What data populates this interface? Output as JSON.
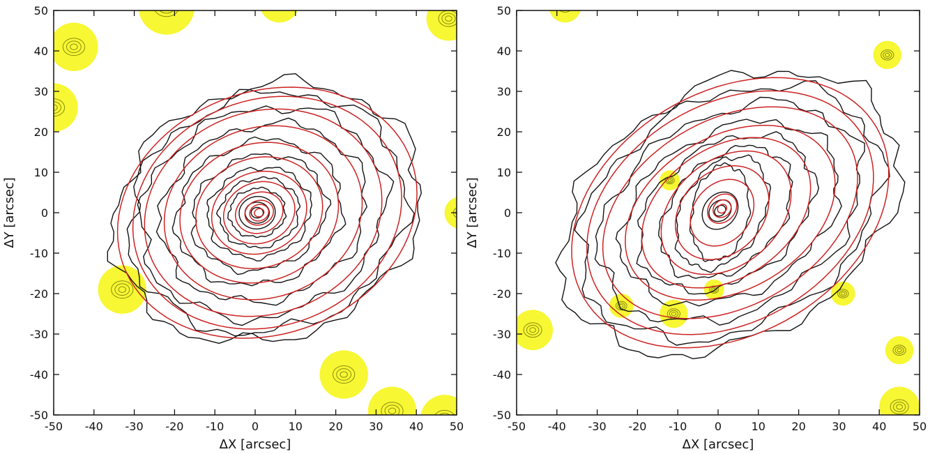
{
  "chart_data": [
    {
      "type": "contour",
      "xlabel": "ΔX [arcsec]",
      "ylabel": "ΔY [arcsec]",
      "xlim": [
        -50,
        50
      ],
      "ylim": [
        -50,
        50
      ],
      "xticks": [
        -50,
        -40,
        -30,
        -20,
        -10,
        0,
        10,
        20,
        30,
        40,
        50
      ],
      "yticks": [
        -50,
        -40,
        -30,
        -20,
        -10,
        0,
        10,
        20,
        30,
        40,
        50
      ],
      "grid": false,
      "isophote_color": "#cc2222",
      "contour_color": "#111111",
      "mask_color": "#f7f734",
      "ellipses": [
        {
          "cx": 1,
          "cy": 0,
          "a": 1.2,
          "b": 1.0,
          "pa": 20
        },
        {
          "cx": 1,
          "cy": 0,
          "a": 2.4,
          "b": 2.0,
          "pa": 20
        },
        {
          "cx": 1,
          "cy": 0,
          "a": 3.6,
          "b": 3.0,
          "pa": 20
        },
        {
          "cx": 1,
          "cy": 0,
          "a": 6,
          "b": 5,
          "pa": 20
        },
        {
          "cx": 1,
          "cy": 0,
          "a": 9,
          "b": 7.5,
          "pa": 20
        },
        {
          "cx": 1,
          "cy": 0,
          "a": 12,
          "b": 10,
          "pa": 20
        },
        {
          "cx": 1,
          "cy": 0,
          "a": 16,
          "b": 13.5,
          "pa": 20
        },
        {
          "cx": 1,
          "cy": 0,
          "a": 20,
          "b": 17,
          "pa": 20
        },
        {
          "cx": 2,
          "cy": 0,
          "a": 25,
          "b": 21,
          "pa": 20
        },
        {
          "cx": 2,
          "cy": 0,
          "a": 30,
          "b": 25,
          "pa": 20
        },
        {
          "cx": 3,
          "cy": 0,
          "a": 34,
          "b": 28,
          "pa": 20
        },
        {
          "cx": 3,
          "cy": 0,
          "a": 38,
          "b": 30,
          "pa": 20
        }
      ],
      "contours": [
        {
          "cx": 0.5,
          "cy": 0,
          "a": 1.5,
          "b": 1.3,
          "pa": 0
        },
        {
          "cx": 0.5,
          "cy": 0,
          "a": 3,
          "b": 2.6,
          "pa": 0
        },
        {
          "cx": 0.5,
          "cy": 0,
          "a": 4.5,
          "b": 4,
          "pa": 10
        },
        {
          "cx": 0.5,
          "cy": 0,
          "a": 7,
          "b": 6,
          "pa": 10
        },
        {
          "cx": 1,
          "cy": 0,
          "a": 10,
          "b": 8.5,
          "pa": 15
        },
        {
          "cx": 1,
          "cy": 0,
          "a": 13,
          "b": 11,
          "pa": 18
        },
        {
          "cx": 1,
          "cy": 0,
          "a": 17,
          "b": 14,
          "pa": 20
        },
        {
          "cx": 1,
          "cy": 0,
          "a": 21,
          "b": 17.5,
          "pa": 20
        },
        {
          "cx": 2,
          "cy": 0,
          "a": 26,
          "b": 21.5,
          "pa": 20
        },
        {
          "cx": 2,
          "cy": 0,
          "a": 31,
          "b": 25.5,
          "pa": 20
        },
        {
          "cx": 3,
          "cy": 0,
          "a": 35,
          "b": 29,
          "pa": 20
        },
        {
          "cx": 3,
          "cy": 0,
          "a": 39,
          "b": 31,
          "pa": 20
        }
      ],
      "masks": [
        {
          "x": -22,
          "y": 51,
          "r": 7
        },
        {
          "x": -45,
          "y": 41,
          "r": 6
        },
        {
          "x": 6,
          "y": 52,
          "r": 5
        },
        {
          "x": 48,
          "y": 48,
          "r": 5.5
        },
        {
          "x": -50,
          "y": 26,
          "r": 6
        },
        {
          "x": 51,
          "y": 0,
          "r": 4
        },
        {
          "x": -33,
          "y": -19,
          "r": 6
        },
        {
          "x": 22,
          "y": -40,
          "r": 6
        },
        {
          "x": 34,
          "y": -49,
          "r": 6
        },
        {
          "x": 47,
          "y": -51,
          "r": 6
        }
      ]
    },
    {
      "type": "contour",
      "xlabel": "ΔX [arcsec]",
      "ylabel": "ΔY [arcsec]",
      "xlim": [
        -50,
        50
      ],
      "ylim": [
        -50,
        50
      ],
      "xticks": [
        -50,
        -40,
        -30,
        -20,
        -10,
        0,
        10,
        20,
        30,
        40,
        50
      ],
      "yticks": [
        -50,
        -40,
        -30,
        -20,
        -10,
        0,
        10,
        20,
        30,
        40,
        50
      ],
      "grid": false,
      "isophote_color": "#cc2222",
      "contour_color": "#111111",
      "mask_color": "#f7f734",
      "ellipses": [
        {
          "cx": 1,
          "cy": 1,
          "a": 1.2,
          "b": 1.0,
          "pa": 40
        },
        {
          "cx": 1,
          "cy": 1,
          "a": 2.4,
          "b": 2.0,
          "pa": 40
        },
        {
          "cx": 1,
          "cy": 1,
          "a": 4,
          "b": 3.2,
          "pa": 45
        },
        {
          "cx": 1,
          "cy": 0,
          "a": 9,
          "b": 7,
          "pa": 50
        },
        {
          "cx": 1,
          "cy": 0,
          "a": 13,
          "b": 10,
          "pa": 45
        },
        {
          "cx": 2,
          "cy": 0,
          "a": 18,
          "b": 13,
          "pa": 40
        },
        {
          "cx": 2,
          "cy": 0,
          "a": 23,
          "b": 16,
          "pa": 35
        },
        {
          "cx": 3,
          "cy": 0,
          "a": 28,
          "b": 19,
          "pa": 30
        },
        {
          "cx": 3,
          "cy": 0,
          "a": 34,
          "b": 23,
          "pa": 30
        },
        {
          "cx": 3,
          "cy": 0,
          "a": 38,
          "b": 27,
          "pa": 30
        },
        {
          "cx": 3,
          "cy": 0,
          "a": 42,
          "b": 30,
          "pa": 30
        }
      ],
      "contours": [
        {
          "cx": 0.5,
          "cy": 0.5,
          "a": 1.5,
          "b": 1.2,
          "pa": 40
        },
        {
          "cx": 0.5,
          "cy": 0.5,
          "a": 3,
          "b": 2.4,
          "pa": 40
        },
        {
          "cx": 0.5,
          "cy": 0.5,
          "a": 5,
          "b": 4,
          "pa": 50
        },
        {
          "cx": 0.5,
          "cy": 0,
          "a": 12,
          "b": 7,
          "pa": 80
        },
        {
          "cx": 1,
          "cy": 0,
          "a": 15,
          "b": 10,
          "pa": 60
        },
        {
          "cx": 2,
          "cy": 0,
          "a": 19,
          "b": 13,
          "pa": 45
        },
        {
          "cx": 2,
          "cy": 0,
          "a": 24,
          "b": 16.5,
          "pa": 35
        },
        {
          "cx": 3,
          "cy": 0,
          "a": 29,
          "b": 20,
          "pa": 30
        },
        {
          "cx": 3,
          "cy": 0,
          "a": 35,
          "b": 24,
          "pa": 30
        },
        {
          "cx": 3,
          "cy": 0,
          "a": 40,
          "b": 28,
          "pa": 30
        },
        {
          "cx": 3,
          "cy": 0,
          "a": 45,
          "b": 31,
          "pa": 30
        }
      ],
      "masks": [
        {
          "x": -38,
          "y": 51,
          "r": 4
        },
        {
          "x": 42,
          "y": 39,
          "r": 3.5
        },
        {
          "x": -12,
          "y": 8,
          "r": 2.5
        },
        {
          "x": -1,
          "y": -19,
          "r": 2.5
        },
        {
          "x": 31,
          "y": -20,
          "r": 3
        },
        {
          "x": -24,
          "y": -23,
          "r": 3
        },
        {
          "x": -11,
          "y": -25,
          "r": 3.5
        },
        {
          "x": -46,
          "y": -29,
          "r": 5
        },
        {
          "x": 45,
          "y": -34,
          "r": 3.5
        },
        {
          "x": 45,
          "y": -48,
          "r": 5
        }
      ]
    }
  ]
}
